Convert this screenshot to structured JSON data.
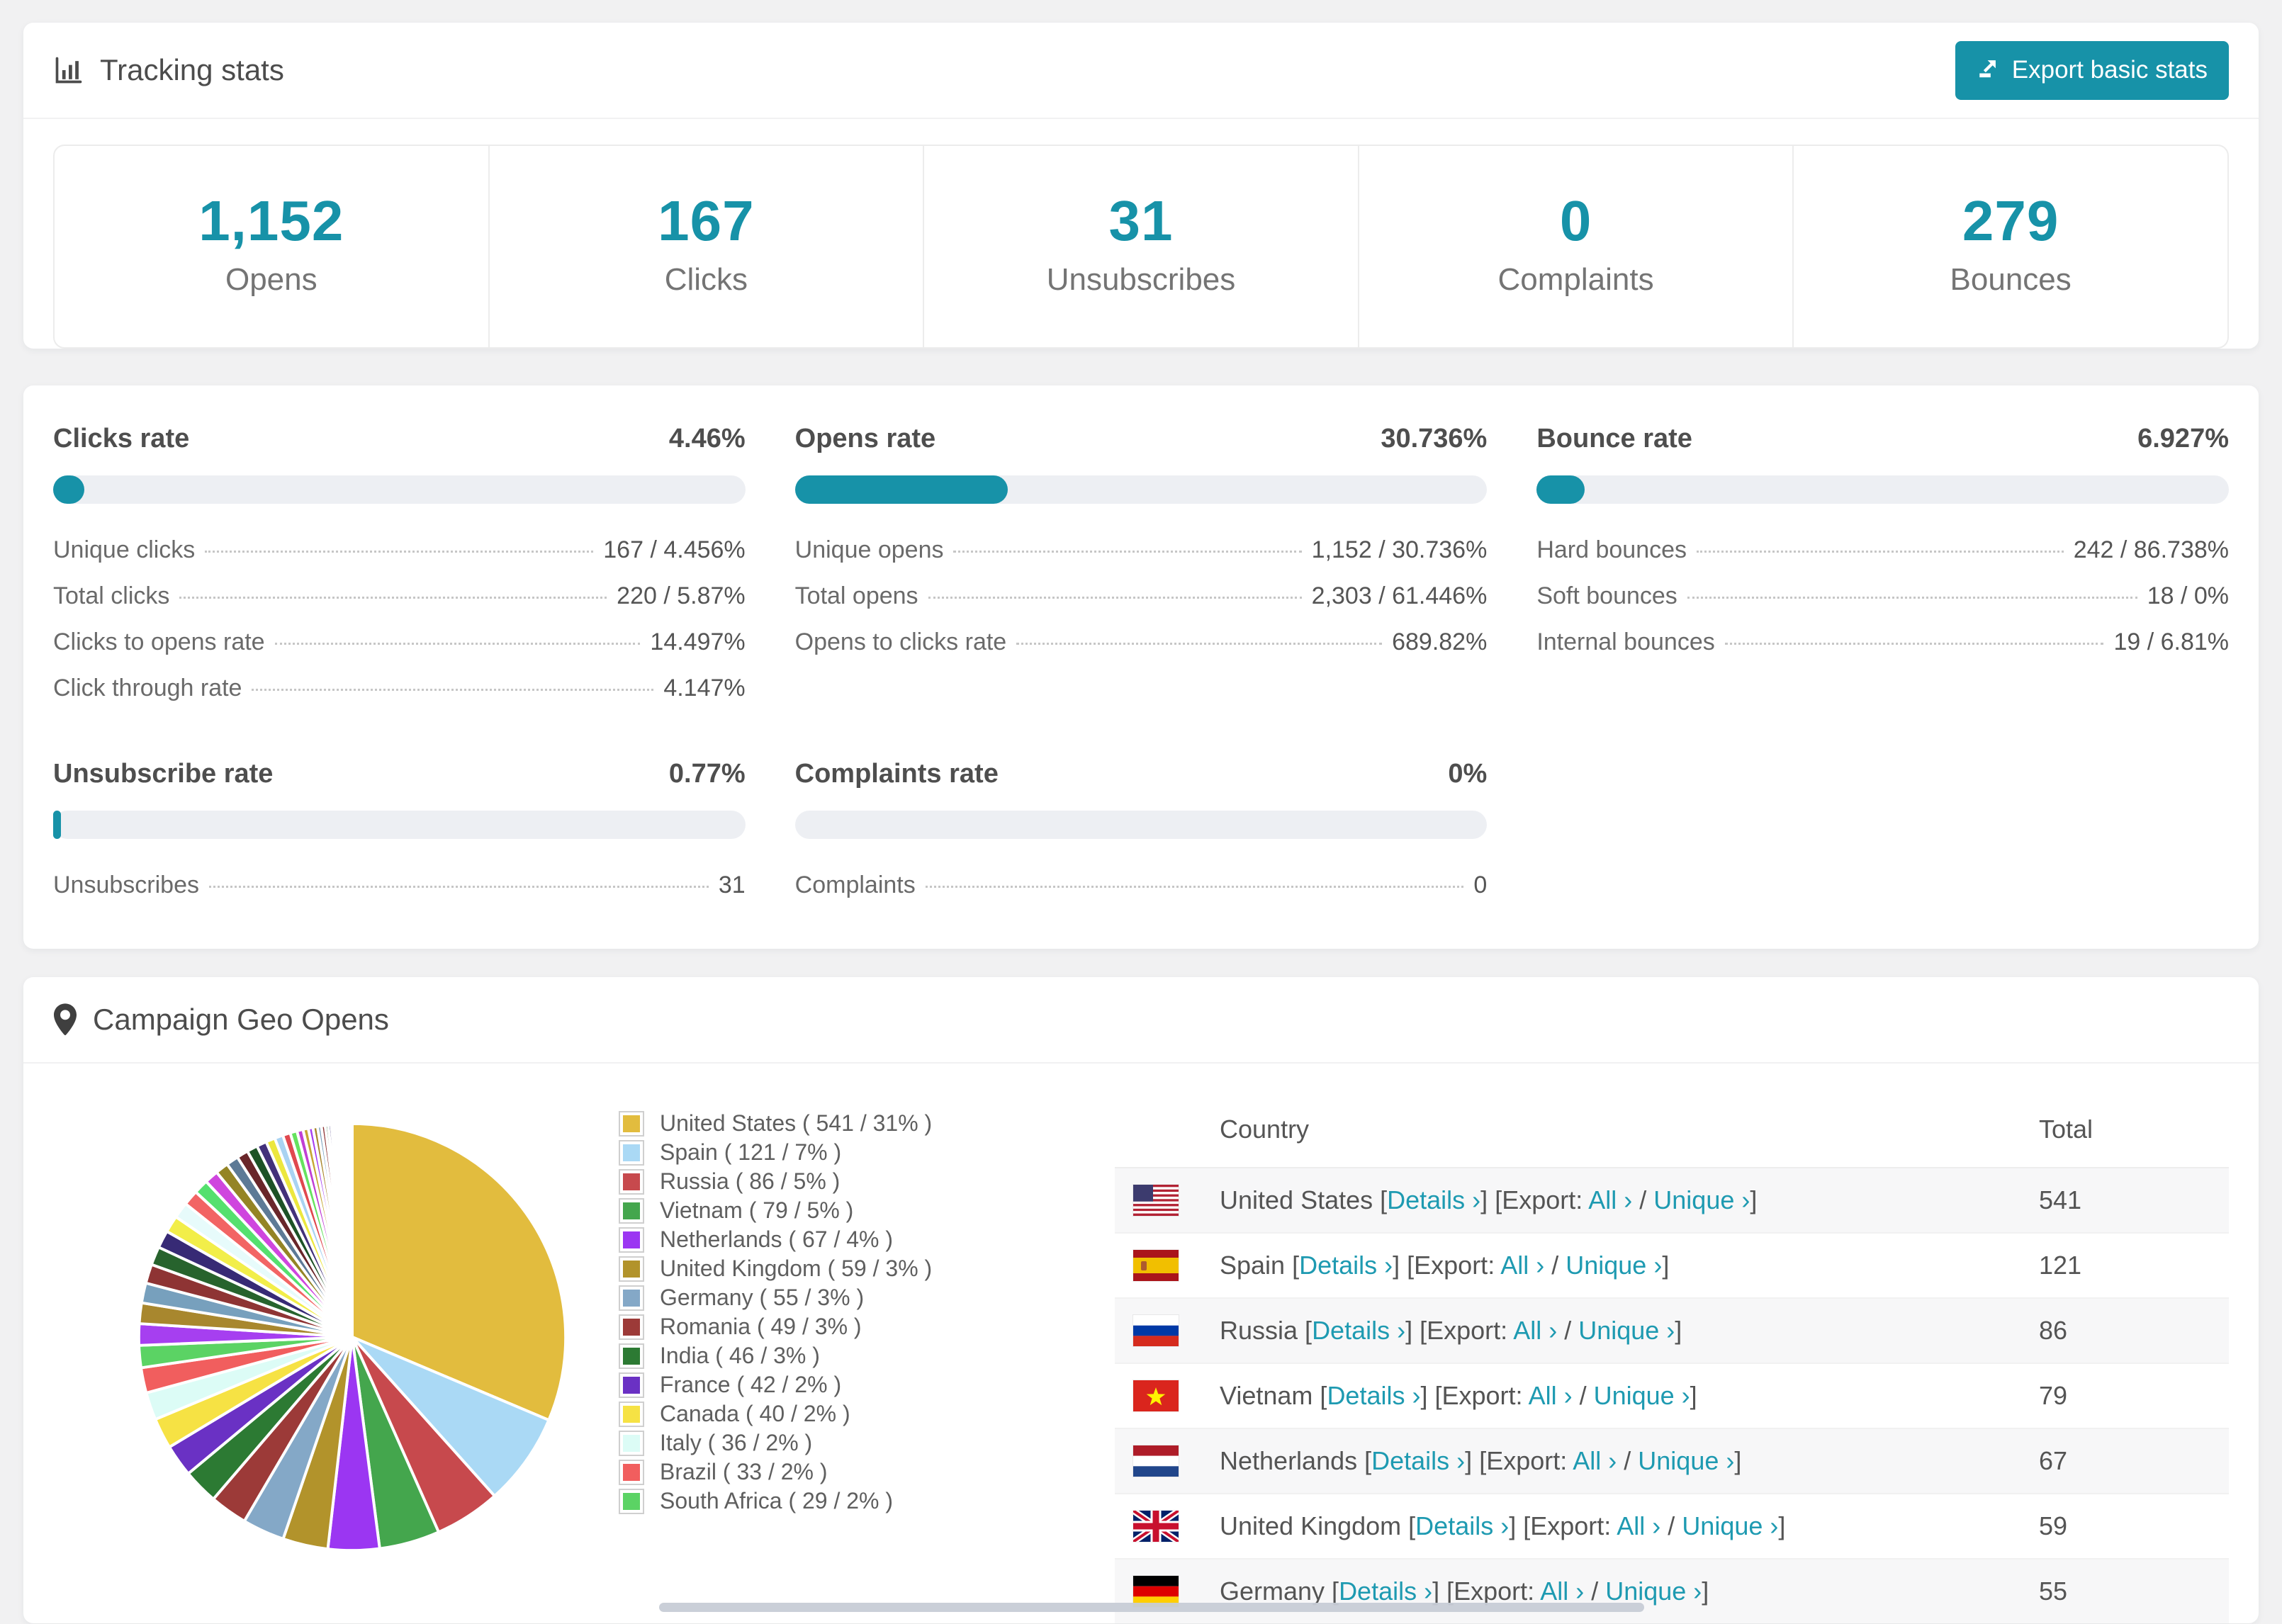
{
  "app": {
    "accent": "#1792a8",
    "link_color": "#1e9ab1",
    "page_bg": "#f1f1f2"
  },
  "tracking": {
    "title": "Tracking stats",
    "export_button": "Export basic stats",
    "stats": [
      {
        "value": "1,152",
        "label": "Opens"
      },
      {
        "value": "167",
        "label": "Clicks"
      },
      {
        "value": "31",
        "label": "Unsubscribes"
      },
      {
        "value": "0",
        "label": "Complaints"
      },
      {
        "value": "279",
        "label": "Bounces"
      }
    ]
  },
  "rates": [
    {
      "title": "Clicks rate",
      "value": "4.46%",
      "percent": 4.46,
      "rows": [
        {
          "label": "Unique clicks",
          "value": "167 / 4.456%"
        },
        {
          "label": "Total clicks",
          "value": "220 / 5.87%"
        },
        {
          "label": "Clicks to opens rate",
          "value": "14.497%"
        },
        {
          "label": "Click through rate",
          "value": "4.147%"
        }
      ]
    },
    {
      "title": "Opens rate",
      "value": "30.736%",
      "percent": 30.736,
      "rows": [
        {
          "label": "Unique opens",
          "value": "1,152 / 30.736%"
        },
        {
          "label": "Total opens",
          "value": "2,303 / 61.446%"
        },
        {
          "label": "Opens to clicks rate",
          "value": "689.82%"
        }
      ]
    },
    {
      "title": "Bounce rate",
      "value": "6.927%",
      "percent": 6.927,
      "rows": [
        {
          "label": "Hard bounces",
          "value": "242 / 86.738%"
        },
        {
          "label": "Soft bounces",
          "value": "18 / 0%"
        },
        {
          "label": "Internal bounces",
          "value": "19 / 6.81%"
        }
      ]
    },
    {
      "title": "Unsubscribe rate",
      "value": "0.77%",
      "percent": 0.77,
      "rows": [
        {
          "label": "Unsubscribes",
          "value": "31"
        }
      ]
    },
    {
      "title": "Complaints rate",
      "value": "0%",
      "percent": 0,
      "rows": [
        {
          "label": "Complaints",
          "value": "0"
        }
      ]
    }
  ],
  "geo": {
    "title": "Campaign Geo Opens",
    "table": {
      "headers": {
        "country": "Country",
        "total": "Total"
      },
      "links": {
        "details": "Details ›",
        "export_prefix": "[Export:",
        "all": "All ›",
        "slash": "/",
        "unique": "Unique ›"
      },
      "rows": [
        {
          "country": "United States",
          "flag": "us",
          "total": "541"
        },
        {
          "country": "Spain",
          "flag": "es",
          "total": "121"
        },
        {
          "country": "Russia",
          "flag": "ru",
          "total": "86"
        },
        {
          "country": "Vietnam",
          "flag": "vn",
          "total": "79"
        },
        {
          "country": "Netherlands",
          "flag": "nl",
          "total": "67"
        },
        {
          "country": "United Kingdom",
          "flag": "gb",
          "total": "59"
        },
        {
          "country": "Germany",
          "flag": "de",
          "total": "55",
          "clipped": true
        }
      ]
    }
  },
  "chart_data": {
    "type": "pie",
    "title": "Campaign Geo Opens",
    "labels": [
      "United States",
      "Spain",
      "Russia",
      "Vietnam",
      "Netherlands",
      "United Kingdom",
      "Germany",
      "Romania",
      "India",
      "France",
      "Canada",
      "Italy",
      "Brazil",
      "South Africa"
    ],
    "values": [
      541,
      121,
      86,
      79,
      67,
      59,
      55,
      49,
      46,
      42,
      40,
      36,
      33,
      29
    ],
    "percents": [
      31,
      7,
      5,
      5,
      4,
      3,
      3,
      3,
      3,
      2,
      2,
      2,
      2,
      2
    ],
    "colors": [
      "#e2bc3e",
      "#aad9f5",
      "#c7494d",
      "#44a64d",
      "#9b36f2",
      "#b2932b",
      "#84a8c7",
      "#9c3a38",
      "#2c7a33",
      "#6a31c4",
      "#f6e244",
      "#dcfcf6",
      "#f15e5e",
      "#5bd364"
    ],
    "others_unlabeled_values": [
      28,
      27,
      26,
      25,
      24,
      23,
      22,
      21,
      20,
      19,
      18,
      17,
      16,
      15,
      14,
      13,
      12,
      11,
      10,
      9,
      8,
      7,
      6,
      6,
      5,
      5,
      4,
      4,
      3,
      3,
      3,
      2,
      2,
      2,
      2,
      2,
      1,
      1,
      1,
      1,
      1,
      1,
      1,
      1
    ],
    "others_palette": [
      "#a63ff0",
      "#a8872e",
      "#77a0bd",
      "#8e3434",
      "#27632d",
      "#372a75",
      "#f2ee49",
      "#e7fbfb",
      "#f26464",
      "#55e06e",
      "#cf46de",
      "#948425",
      "#5d7a96",
      "#69262a",
      "#1d5226",
      "#43317a",
      "#ece73e",
      "#a9d3f2",
      "#e0484f",
      "#66e25f",
      "#c03fd4",
      "#c6a733"
    ],
    "start_angle_deg": -90,
    "direction": "clockwise",
    "legend_format": "{label} ( {value} / {percent}% )",
    "legend_position": "right-of-pie"
  }
}
